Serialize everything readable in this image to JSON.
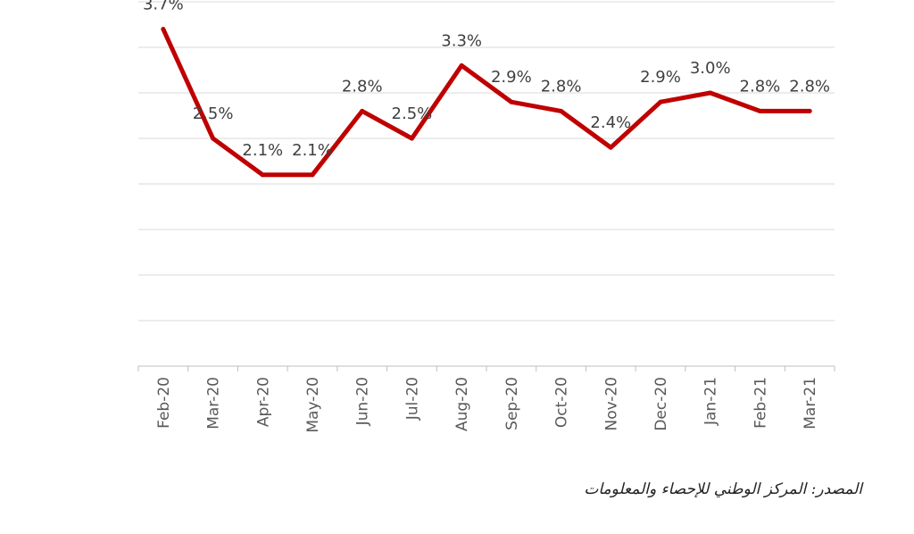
{
  "chart_data": {
    "type": "line",
    "categories": [
      "Feb-20",
      "Mar-20",
      "Apr-20",
      "May-20",
      "Jun-20",
      "Jul-20",
      "Aug-20",
      "Sep-20",
      "Oct-20",
      "Nov-20",
      "Dec-20",
      "Jan-21",
      "Feb-21",
      "Mar-21"
    ],
    "values": [
      3.7,
      2.5,
      2.1,
      2.1,
      2.8,
      2.5,
      3.3,
      2.9,
      2.8,
      2.4,
      2.9,
      3.0,
      2.8,
      2.8
    ],
    "data_labels": [
      "3.7%",
      "2.5%",
      "2.1%",
      "2.1%",
      "2.8%",
      "2.5%",
      "3.3%",
      "2.9%",
      "2.8%",
      "2.4%",
      "2.9%",
      "3.0%",
      "2.8%",
      "2.8%"
    ],
    "ylim": [
      0,
      4.0
    ],
    "grid": true,
    "line_color": "#c00000"
  },
  "source_note": "المصدر: المركز الوطني للإحصاء والمعلومات"
}
